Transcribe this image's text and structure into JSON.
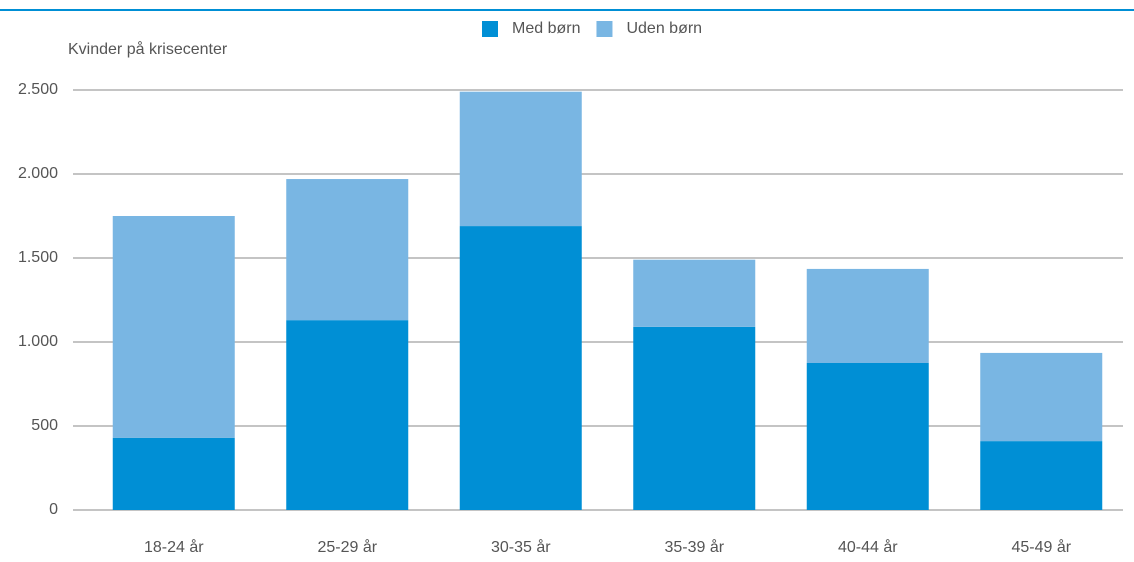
{
  "chart_data": {
    "type": "stacked_bar",
    "y_axis_label": "Kvinder på krisecenter",
    "categories": [
      "18-24 år",
      "25-29 år",
      "30-35 år",
      "35-39 år",
      "40-44 år",
      "45-49 år"
    ],
    "series": [
      {
        "name": "Med børn",
        "color": "#008fd5",
        "values": [
          430,
          1130,
          1690,
          1090,
          875,
          410
        ]
      },
      {
        "name": "Uden børn",
        "color": "#79b6e3",
        "values": [
          1320,
          840,
          800,
          400,
          560,
          525
        ]
      }
    ],
    "ylim": [
      0,
      2500
    ],
    "yticks": [
      0,
      500,
      {
        "value": 1000,
        "label": "1.000"
      },
      {
        "value": 1500,
        "label": "1.500"
      },
      {
        "value": 2000,
        "label": "2.000"
      },
      {
        "value": 2500,
        "label": "2.500"
      }
    ],
    "grid": true
  }
}
